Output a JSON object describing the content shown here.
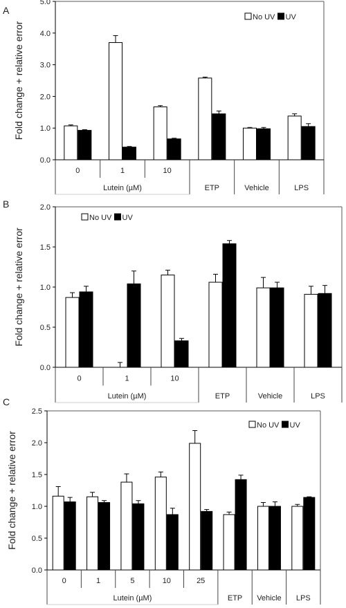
{
  "chart_data": [
    {
      "panel_label": "A",
      "type": "bar",
      "ylabel": "Fold change + relative error",
      "ylim": [
        0,
        5
      ],
      "yticks": [
        "0.0",
        "1.0",
        "2.0",
        "3.0",
        "4.0",
        "5.0"
      ],
      "categories": [
        "0",
        "1",
        "10",
        "ETP",
        "Vehicle",
        "LPS"
      ],
      "group_label": "Lutein (µM)",
      "group_span": 3,
      "legend": [
        "No UV",
        "UV"
      ],
      "legend_position": "top-right",
      "series": [
        {
          "name": "No UV",
          "color": "#ffffff",
          "values": [
            1.07,
            3.7,
            1.67,
            2.58,
            1.0,
            1.38
          ],
          "errors": [
            0.03,
            0.22,
            0.04,
            0.03,
            0.02,
            0.07
          ]
        },
        {
          "name": "UV",
          "color": "#000000",
          "values": [
            0.93,
            0.4,
            0.66,
            1.45,
            0.98,
            1.05
          ],
          "errors": [
            0.02,
            0.02,
            0.02,
            0.09,
            0.04,
            0.09
          ]
        }
      ]
    },
    {
      "panel_label": "B",
      "type": "bar",
      "ylabel": "Fold change + relative error",
      "ylim": [
        0,
        2
      ],
      "yticks": [
        "0.0",
        "0.5",
        "1.0",
        "1.5",
        "2.0"
      ],
      "categories": [
        "0",
        "1",
        "10",
        "ETP",
        "Vehicle",
        "LPS"
      ],
      "group_label": "Lutein (µM)",
      "group_span": 3,
      "legend": [
        "No UV",
        "UV"
      ],
      "legend_position": "top-left",
      "series": [
        {
          "name": "No UV",
          "color": "#ffffff",
          "values": [
            0.87,
            0.0,
            1.15,
            1.06,
            0.99,
            0.91
          ],
          "errors": [
            0.06,
            0.06,
            0.06,
            0.1,
            0.13,
            0.1
          ]
        },
        {
          "name": "UV",
          "color": "#000000",
          "values": [
            0.94,
            1.04,
            0.33,
            1.54,
            0.99,
            0.92
          ],
          "errors": [
            0.07,
            0.16,
            0.03,
            0.04,
            0.07,
            0.1
          ]
        }
      ]
    },
    {
      "panel_label": "C",
      "type": "bar",
      "ylabel": "Fold change + relative error",
      "ylim": [
        0,
        2.5
      ],
      "yticks": [
        "0.0",
        "0.5",
        "1.0",
        "1.5",
        "2.0",
        "2.5"
      ],
      "categories": [
        "0",
        "1",
        "5",
        "10",
        "25",
        "ETP",
        "Vehicle",
        "LPS"
      ],
      "group_label": "Lutein (µM)",
      "group_span": 5,
      "legend": [
        "No UV",
        "UV"
      ],
      "legend_position": "top-right",
      "series": [
        {
          "name": "No UV",
          "color": "#ffffff",
          "values": [
            1.16,
            1.15,
            1.38,
            1.46,
            1.99,
            0.87,
            1.0,
            1.0
          ],
          "errors": [
            0.15,
            0.07,
            0.13,
            0.08,
            0.2,
            0.04,
            0.06,
            0.03
          ]
        },
        {
          "name": "UV",
          "color": "#000000",
          "values": [
            1.07,
            1.06,
            1.04,
            0.87,
            0.92,
            1.42,
            1.0,
            1.14
          ],
          "errors": [
            0.07,
            0.03,
            0.05,
            0.1,
            0.03,
            0.07,
            0.07,
            0.01
          ]
        }
      ]
    }
  ]
}
